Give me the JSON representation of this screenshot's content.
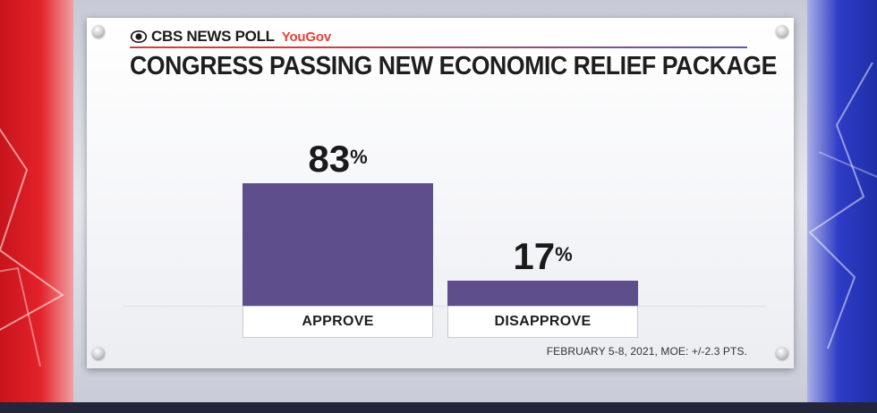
{
  "header": {
    "network": "CBS NEWS POLL",
    "partner": "YouGov"
  },
  "chart_data": {
    "type": "bar",
    "title": "CONGRESS PASSING NEW ECONOMIC RELIEF PACKAGE",
    "categories": [
      "APPROVE",
      "DISAPPROVE"
    ],
    "values": [
      83,
      17
    ],
    "value_labels": [
      "83",
      "17"
    ],
    "unit": "%",
    "ylim": [
      0,
      100
    ],
    "grid": false,
    "bar_color": "#5e4e8c"
  },
  "footer": {
    "source": "FEBRUARY 5-8, 2021, MOE: +/-2.3 PTS."
  }
}
